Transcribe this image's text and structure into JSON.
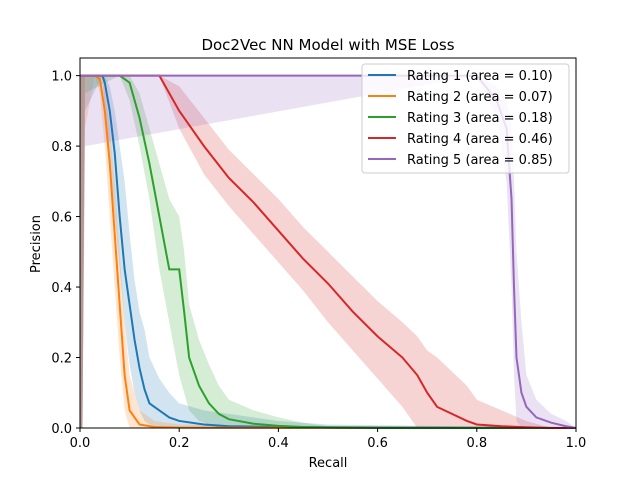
{
  "chart_data": {
    "type": "line",
    "title": "Doc2Vec NN Model with MSE Loss",
    "xlabel": "Recall",
    "ylabel": "Precision",
    "xlim": [
      0,
      1
    ],
    "ylim": [
      0,
      1.05
    ],
    "xticks": [
      "0.0",
      "0.2",
      "0.4",
      "0.6",
      "0.8",
      "1.0"
    ],
    "yticks": [
      "0.0",
      "0.2",
      "0.4",
      "0.6",
      "0.8",
      "1.0"
    ],
    "grid": false,
    "legend_position": "top-right",
    "series": [
      {
        "name": "Rating 1 (area = 0.10)",
        "color": "#1f77b4",
        "x": [
          0,
          0.005,
          0.01,
          0.045,
          0.05,
          0.06,
          0.07,
          0.08,
          0.09,
          0.1,
          0.11,
          0.12,
          0.13,
          0.14,
          0.16,
          0.18,
          0.2,
          0.25,
          0.3,
          0.4,
          0.5,
          1.0
        ],
        "y": [
          1.0,
          1.0,
          1.0,
          1.0,
          0.98,
          0.9,
          0.78,
          0.6,
          0.45,
          0.35,
          0.25,
          0.17,
          0.11,
          0.07,
          0.05,
          0.03,
          0.02,
          0.01,
          0.005,
          0.003,
          0.002,
          0.0
        ],
        "upper": [
          1.0,
          1.0,
          1.0,
          1.0,
          1.0,
          0.97,
          0.9,
          0.8,
          0.7,
          0.55,
          0.42,
          0.33,
          0.28,
          0.2,
          0.14,
          0.1,
          0.07,
          0.05,
          0.04,
          0.02,
          0.01,
          0.0
        ],
        "lower": [
          0.0,
          0.0,
          0.9,
          1.0,
          0.9,
          0.75,
          0.6,
          0.45,
          0.3,
          0.18,
          0.1,
          0.05,
          0.02,
          0.01,
          0.0,
          0.0,
          0.0,
          0.0,
          0.0,
          0.0,
          0.0,
          0.0
        ]
      },
      {
        "name": "Rating 2 (area = 0.07)",
        "color": "#ff7f0e",
        "x": [
          0,
          0.005,
          0.01,
          0.03,
          0.04,
          0.05,
          0.06,
          0.07,
          0.08,
          0.09,
          0.1,
          0.12,
          0.15,
          0.2,
          1.0
        ],
        "y": [
          1.0,
          1.0,
          1.0,
          1.0,
          0.99,
          0.9,
          0.75,
          0.55,
          0.35,
          0.15,
          0.05,
          0.01,
          0.003,
          0.001,
          0.0
        ],
        "upper": [
          1.0,
          1.0,
          1.0,
          1.0,
          1.0,
          0.96,
          0.85,
          0.7,
          0.5,
          0.3,
          0.15,
          0.05,
          0.02,
          0.01,
          0.0
        ],
        "lower": [
          0.0,
          0.0,
          0.85,
          1.0,
          0.95,
          0.8,
          0.6,
          0.4,
          0.2,
          0.05,
          0.0,
          0.0,
          0.0,
          0.0,
          0.0
        ]
      },
      {
        "name": "Rating 3 (area = 0.18)",
        "color": "#2ca02c",
        "x": [
          0,
          0.005,
          0.01,
          0.08,
          0.1,
          0.12,
          0.14,
          0.16,
          0.18,
          0.2,
          0.21,
          0.22,
          0.24,
          0.26,
          0.28,
          0.3,
          0.35,
          0.4,
          0.45,
          0.5,
          0.6,
          1.0
        ],
        "y": [
          1.0,
          1.0,
          1.0,
          1.0,
          0.98,
          0.88,
          0.75,
          0.6,
          0.45,
          0.45,
          0.33,
          0.2,
          0.12,
          0.07,
          0.04,
          0.025,
          0.012,
          0.006,
          0.003,
          0.001,
          0.0,
          0.0
        ],
        "upper": [
          1.0,
          1.0,
          1.0,
          1.0,
          1.0,
          0.95,
          0.85,
          0.75,
          0.65,
          0.6,
          0.5,
          0.35,
          0.25,
          0.18,
          0.12,
          0.08,
          0.05,
          0.03,
          0.015,
          0.005,
          0.0,
          0.0
        ],
        "lower": [
          0.0,
          0.0,
          0.95,
          1.0,
          0.93,
          0.8,
          0.65,
          0.45,
          0.3,
          0.15,
          0.1,
          0.05,
          0.02,
          0.01,
          0.0,
          0.0,
          0.0,
          0.0,
          0.0,
          0.0,
          0.0,
          0.0
        ]
      },
      {
        "name": "Rating 4 (area = 0.46)",
        "color": "#d62728",
        "x": [
          0,
          0.005,
          0.01,
          0.16,
          0.2,
          0.25,
          0.3,
          0.35,
          0.4,
          0.45,
          0.5,
          0.55,
          0.6,
          0.65,
          0.68,
          0.7,
          0.72,
          0.75,
          0.78,
          0.8,
          0.85,
          0.9,
          0.95,
          1.0
        ],
        "y": [
          1.0,
          1.0,
          1.0,
          1.0,
          0.9,
          0.8,
          0.71,
          0.64,
          0.56,
          0.48,
          0.41,
          0.33,
          0.26,
          0.2,
          0.15,
          0.1,
          0.06,
          0.04,
          0.02,
          0.01,
          0.005,
          0.002,
          0.0,
          0.0
        ],
        "upper": [
          1.0,
          1.0,
          1.0,
          1.0,
          0.97,
          0.88,
          0.79,
          0.72,
          0.65,
          0.57,
          0.5,
          0.43,
          0.36,
          0.3,
          0.26,
          0.22,
          0.2,
          0.16,
          0.12,
          0.08,
          0.05,
          0.02,
          0.0,
          0.0
        ],
        "lower": [
          0.0,
          0.0,
          1.0,
          1.0,
          0.85,
          0.72,
          0.63,
          0.55,
          0.47,
          0.39,
          0.3,
          0.22,
          0.14,
          0.06,
          0.0,
          0.0,
          0.0,
          0.0,
          0.0,
          0.0,
          0.0,
          0.0,
          0.0,
          0.0
        ]
      },
      {
        "name": "Rating 5 (area = 0.85)",
        "color": "#9467bd",
        "x": [
          0,
          0.005,
          0.01,
          0.8,
          0.84,
          0.86,
          0.87,
          0.875,
          0.88,
          0.89,
          0.9,
          0.92,
          0.95,
          0.98,
          1.0
        ],
        "y": [
          1.0,
          1.0,
          1.0,
          1.0,
          0.93,
          0.85,
          0.65,
          0.4,
          0.2,
          0.1,
          0.06,
          0.03,
          0.015,
          0.005,
          0.0
        ],
        "upper": [
          1.0,
          1.0,
          1.0,
          1.0,
          0.97,
          0.93,
          0.85,
          0.7,
          0.5,
          0.3,
          0.15,
          0.08,
          0.04,
          0.02,
          0.0
        ],
        "lower": [
          0.0,
          0.0,
          0.8,
          1.0,
          0.88,
          0.7,
          0.4,
          0.15,
          0.02,
          0.0,
          0.0,
          0.0,
          0.0,
          0.0,
          0.0
        ]
      }
    ]
  }
}
